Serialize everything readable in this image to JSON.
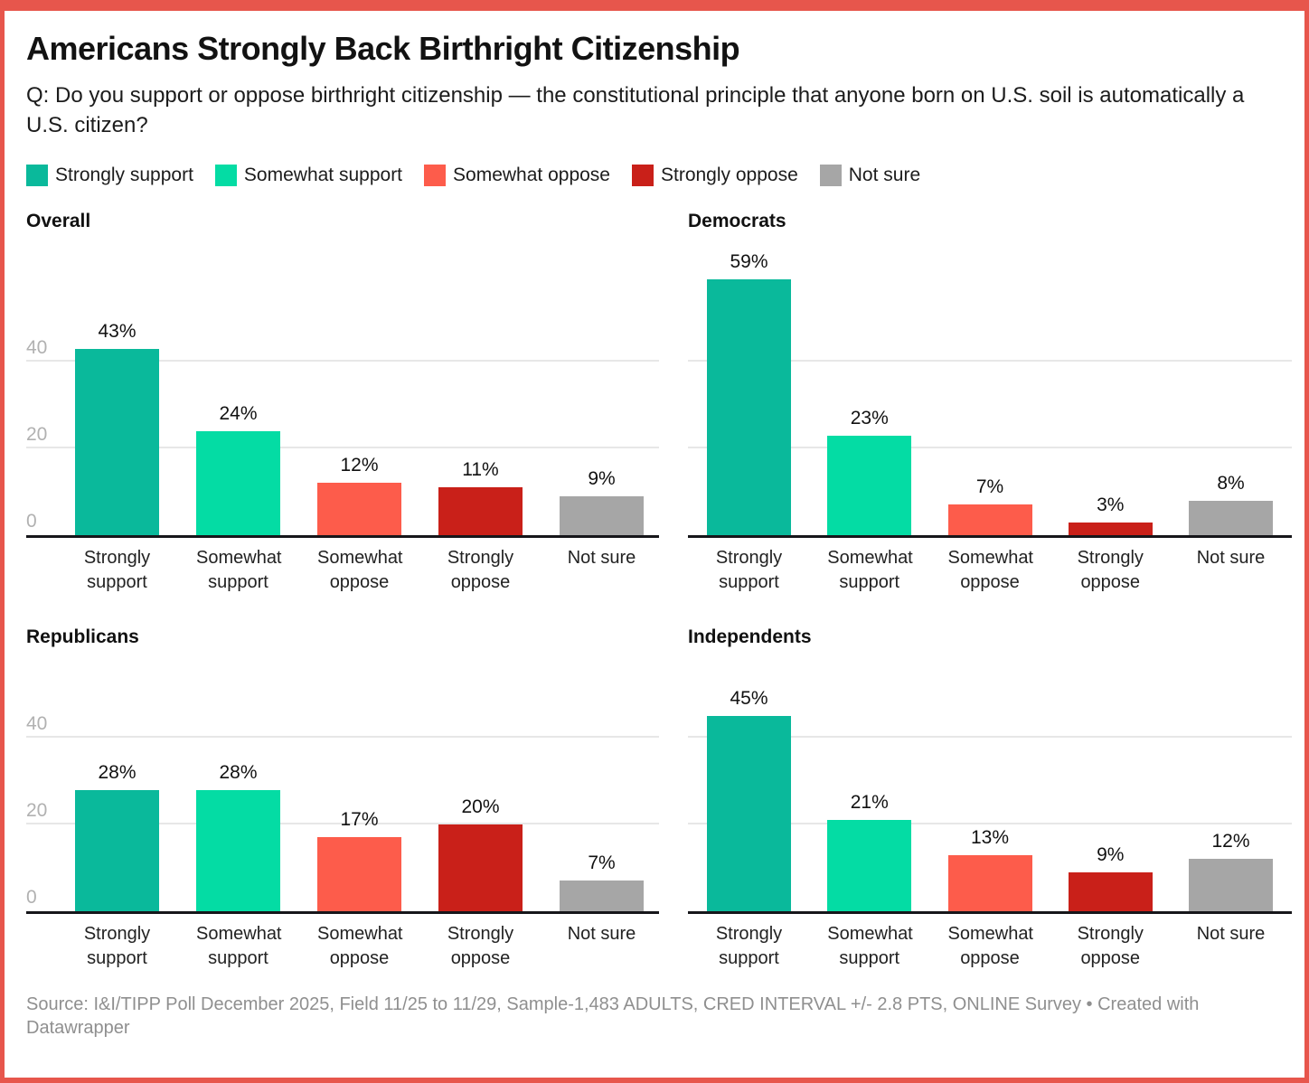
{
  "header": {
    "title": "Americans Strongly Back Birthright Citizenship",
    "question": "Q: Do you support or oppose birthright citizenship — the constitutional principle that anyone born on U.S. soil is automatically a U.S. citizen?"
  },
  "legend": {
    "items": [
      {
        "label": "Strongly support",
        "color": "#0ab99b"
      },
      {
        "label": "Somewhat support",
        "color": "#04dca4"
      },
      {
        "label": "Somewhat oppose",
        "color": "#fd5c4b"
      },
      {
        "label": "Strongly oppose",
        "color": "#c92019"
      },
      {
        "label": "Not sure",
        "color": "#a6a6a6"
      }
    ]
  },
  "chart_data": {
    "type": "bar",
    "title": "Americans Strongly Back Birthright Citizenship",
    "categories": [
      "Strongly support",
      "Somewhat support",
      "Somewhat oppose",
      "Strongly oppose",
      "Not sure"
    ],
    "category_colors": [
      "#0ab99b",
      "#04dca4",
      "#fd5c4b",
      "#c92019",
      "#a6a6a6"
    ],
    "value_suffix": "%",
    "panels": [
      {
        "title": "Overall",
        "values": [
          43,
          24,
          12,
          11,
          9
        ]
      },
      {
        "title": "Democrats",
        "values": [
          59,
          23,
          7,
          3,
          8
        ]
      },
      {
        "title": "Republicans",
        "values": [
          28,
          28,
          17,
          20,
          7
        ]
      },
      {
        "title": "Independents",
        "values": [
          45,
          21,
          13,
          9,
          12
        ]
      }
    ],
    "ylim": [
      0,
      62
    ],
    "yticks": [
      0,
      20,
      40
    ],
    "grid": true,
    "ytick_labels_on_panels": [
      0,
      2
    ],
    "legend_position": "top"
  },
  "footer": {
    "source": "Source: I&I/TIPP Poll December 2025, Field 11/25 to 11/29, Sample-1,483 ADULTS, CRED INTERVAL +/- 2.8 PTS, ONLINE Survey • Created with Datawrapper"
  }
}
